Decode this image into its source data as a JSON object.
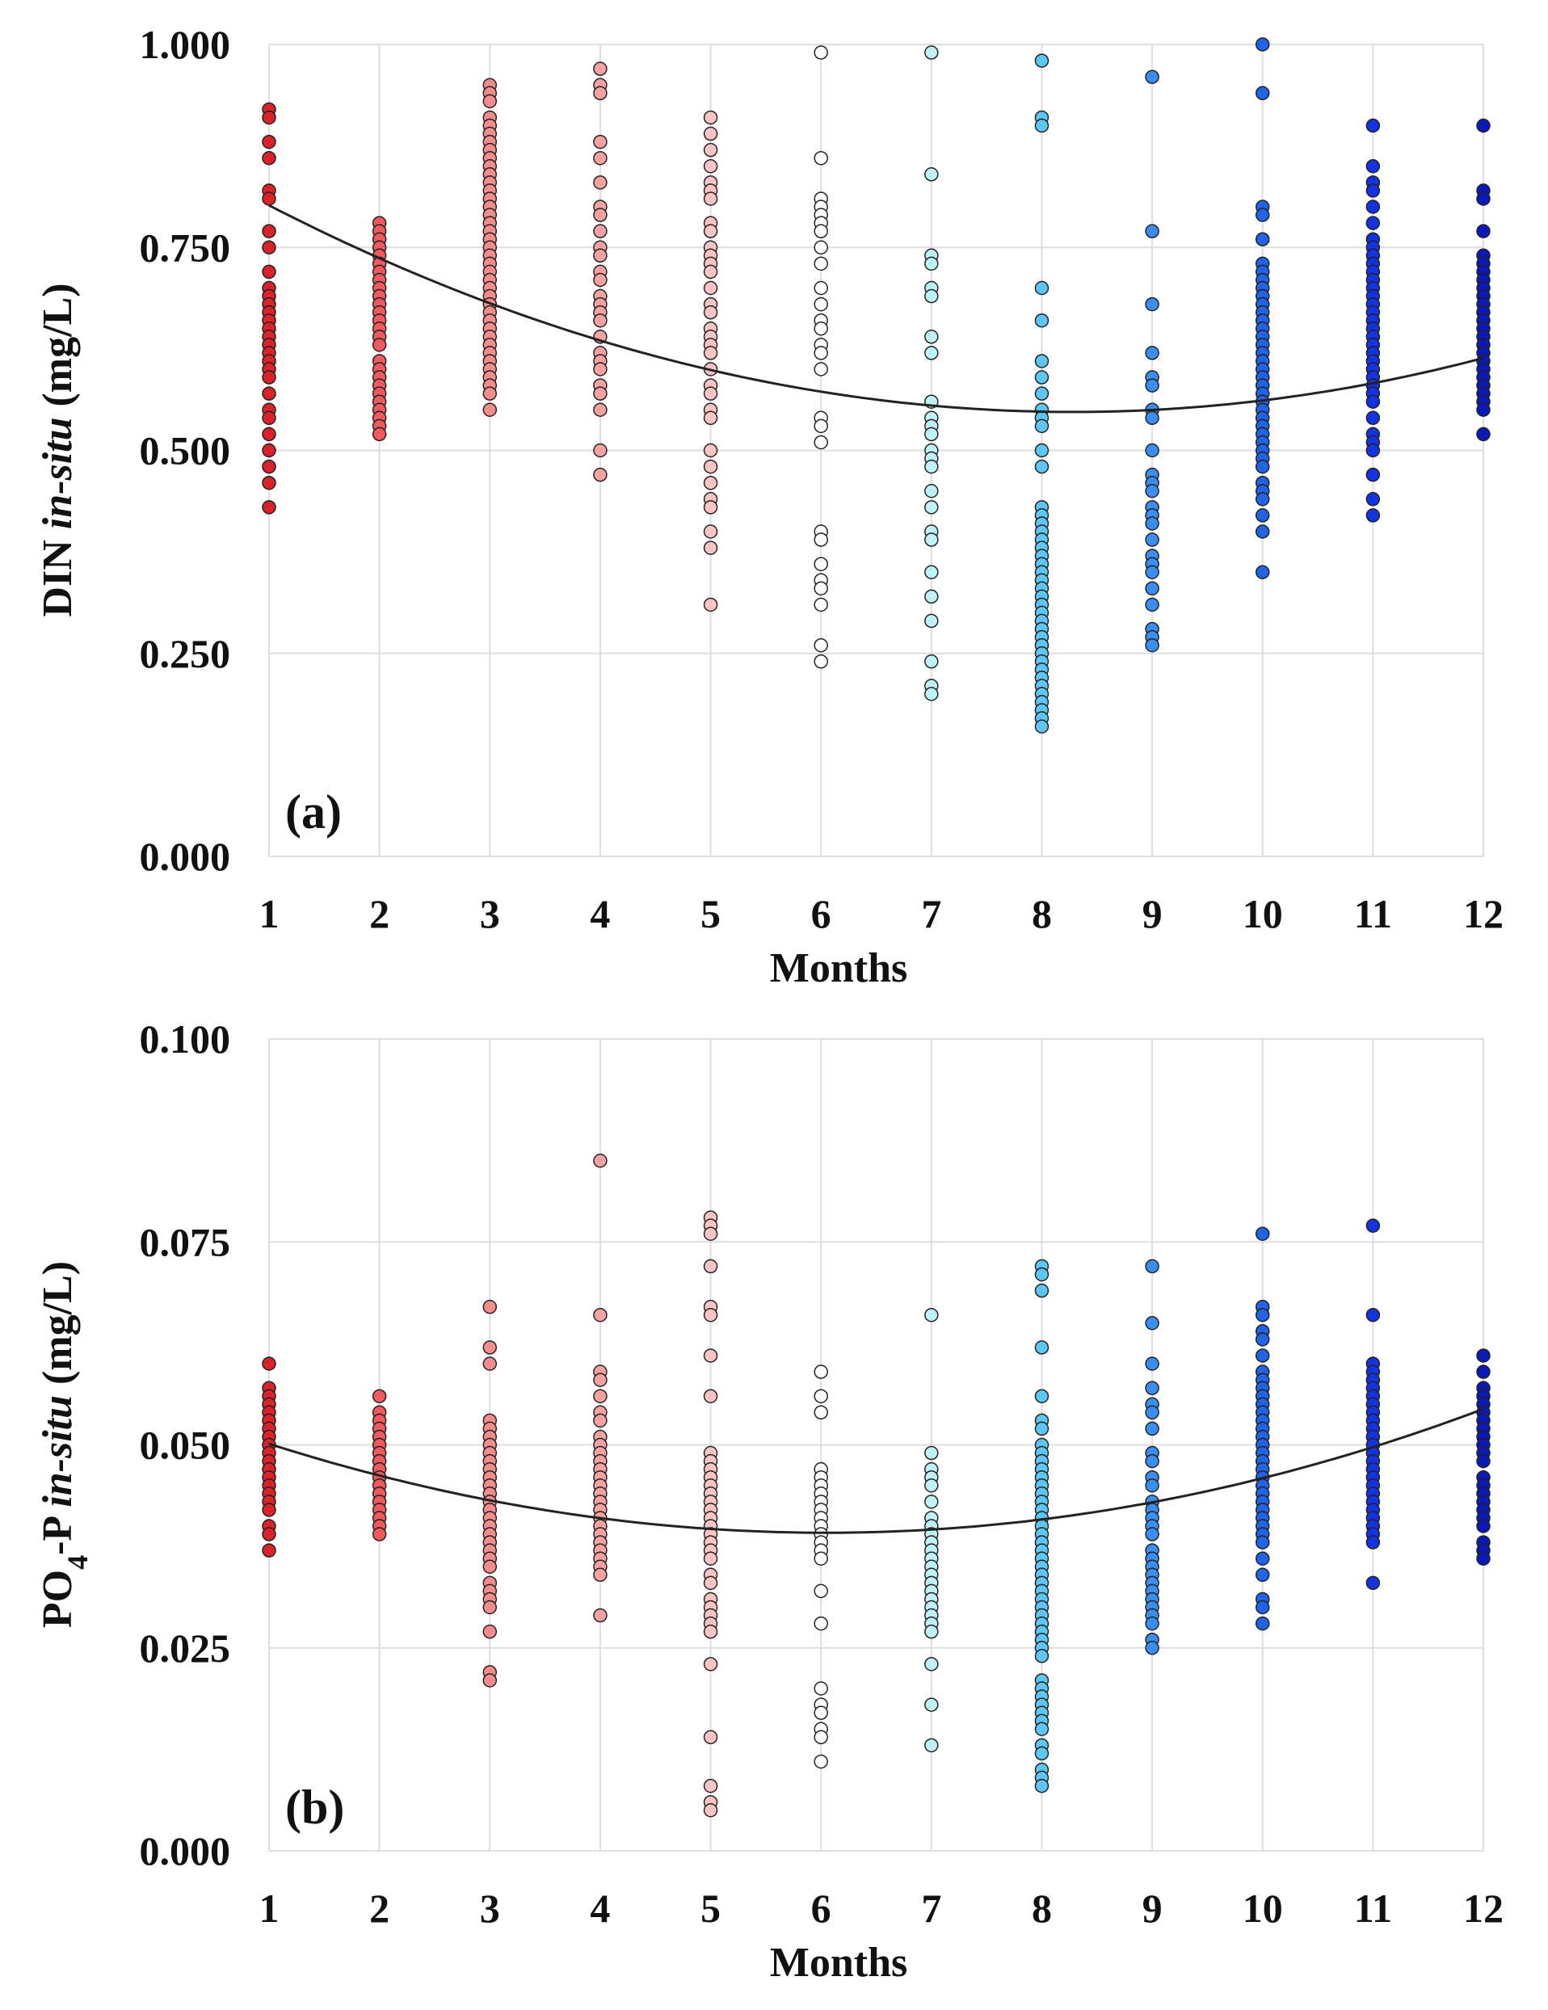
{
  "chart_data": [
    {
      "type": "scatter",
      "panel_label": "(a)",
      "xlabel": "Months",
      "ylabel_parts": [
        "DIN ",
        "in-situ",
        " (mg/L)"
      ],
      "xlim": [
        1,
        12
      ],
      "ylim": [
        0,
        1
      ],
      "yticks": [
        0,
        0.25,
        0.5,
        0.75,
        1.0
      ],
      "ytick_labels": [
        "0.000",
        "0.250",
        "0.500",
        "0.750",
        "1.000"
      ],
      "xticks": [
        1,
        2,
        3,
        4,
        5,
        6,
        7,
        8,
        9,
        10,
        11,
        12
      ],
      "xtick_labels": [
        "1",
        "2",
        "3",
        "4",
        "5",
        "6",
        "7",
        "8",
        "9",
        "10",
        "11",
        "12"
      ],
      "grid": true,
      "trend": {
        "type": "quadratic",
        "coefficients": [
          0.8765,
          -0.0795,
          0.0048
        ]
      },
      "series": [
        {
          "month": 1,
          "color": "#d8232a",
          "values": [
            0.92,
            0.91,
            0.88,
            0.86,
            0.82,
            0.81,
            0.77,
            0.75,
            0.72,
            0.7,
            0.69,
            0.68,
            0.67,
            0.66,
            0.65,
            0.64,
            0.63,
            0.62,
            0.61,
            0.6,
            0.59,
            0.57,
            0.55,
            0.54,
            0.52,
            0.5,
            0.48,
            0.46,
            0.43
          ]
        },
        {
          "month": 2,
          "color": "#f05a5f",
          "values": [
            0.78,
            0.77,
            0.76,
            0.75,
            0.74,
            0.73,
            0.72,
            0.71,
            0.7,
            0.69,
            0.68,
            0.67,
            0.66,
            0.65,
            0.64,
            0.63,
            0.61,
            0.6,
            0.59,
            0.58,
            0.57,
            0.56,
            0.55,
            0.54,
            0.53,
            0.52
          ]
        },
        {
          "month": 3,
          "color": "#f58c8c",
          "values": [
            0.95,
            0.94,
            0.93,
            0.91,
            0.9,
            0.89,
            0.88,
            0.87,
            0.86,
            0.85,
            0.84,
            0.83,
            0.82,
            0.81,
            0.8,
            0.79,
            0.78,
            0.77,
            0.76,
            0.75,
            0.74,
            0.73,
            0.72,
            0.71,
            0.7,
            0.69,
            0.68,
            0.67,
            0.66,
            0.65,
            0.64,
            0.63,
            0.62,
            0.61,
            0.6,
            0.59,
            0.58,
            0.57,
            0.55
          ]
        },
        {
          "month": 4,
          "color": "#f7a2a2",
          "values": [
            0.97,
            0.95,
            0.94,
            0.88,
            0.86,
            0.83,
            0.8,
            0.79,
            0.77,
            0.75,
            0.74,
            0.72,
            0.71,
            0.69,
            0.68,
            0.67,
            0.66,
            0.64,
            0.62,
            0.61,
            0.6,
            0.58,
            0.57,
            0.55,
            0.5,
            0.47
          ]
        },
        {
          "month": 5,
          "color": "#fac4c4",
          "values": [
            0.91,
            0.89,
            0.87,
            0.85,
            0.83,
            0.82,
            0.81,
            0.78,
            0.77,
            0.75,
            0.74,
            0.73,
            0.72,
            0.7,
            0.68,
            0.67,
            0.65,
            0.64,
            0.63,
            0.62,
            0.6,
            0.58,
            0.57,
            0.55,
            0.54,
            0.5,
            0.48,
            0.46,
            0.44,
            0.43,
            0.4,
            0.38,
            0.31
          ]
        },
        {
          "month": 6,
          "color": "#ffffff",
          "values": [
            0.99,
            0.86,
            0.81,
            0.8,
            0.79,
            0.78,
            0.77,
            0.75,
            0.73,
            0.7,
            0.68,
            0.66,
            0.65,
            0.63,
            0.62,
            0.6,
            0.54,
            0.53,
            0.51,
            0.4,
            0.39,
            0.36,
            0.34,
            0.33,
            0.31,
            0.26,
            0.24
          ]
        },
        {
          "month": 7,
          "color": "#bff2f6",
          "values": [
            0.99,
            0.84,
            0.74,
            0.73,
            0.7,
            0.69,
            0.64,
            0.62,
            0.56,
            0.54,
            0.53,
            0.52,
            0.5,
            0.49,
            0.48,
            0.45,
            0.43,
            0.4,
            0.39,
            0.35,
            0.32,
            0.29,
            0.24,
            0.21,
            0.2
          ]
        },
        {
          "month": 8,
          "color": "#5ec6f2",
          "values": [
            0.98,
            0.91,
            0.9,
            0.7,
            0.66,
            0.61,
            0.59,
            0.57,
            0.55,
            0.54,
            0.53,
            0.5,
            0.48,
            0.43,
            0.42,
            0.41,
            0.4,
            0.39,
            0.38,
            0.37,
            0.36,
            0.35,
            0.34,
            0.33,
            0.32,
            0.31,
            0.3,
            0.29,
            0.28,
            0.27,
            0.26,
            0.25,
            0.24,
            0.23,
            0.22,
            0.21,
            0.2,
            0.19,
            0.18,
            0.17,
            0.16
          ]
        },
        {
          "month": 9,
          "color": "#3a8ef0",
          "values": [
            0.96,
            0.77,
            0.68,
            0.62,
            0.59,
            0.58,
            0.55,
            0.54,
            0.5,
            0.47,
            0.46,
            0.45,
            0.43,
            0.42,
            0.41,
            0.39,
            0.37,
            0.36,
            0.35,
            0.33,
            0.31,
            0.28,
            0.27,
            0.26
          ]
        },
        {
          "month": 10,
          "color": "#2063e6",
          "values": [
            1.0,
            0.94,
            0.8,
            0.79,
            0.76,
            0.73,
            0.72,
            0.71,
            0.7,
            0.69,
            0.68,
            0.67,
            0.66,
            0.65,
            0.64,
            0.63,
            0.62,
            0.61,
            0.6,
            0.59,
            0.58,
            0.57,
            0.56,
            0.55,
            0.54,
            0.53,
            0.52,
            0.51,
            0.5,
            0.49,
            0.48,
            0.46,
            0.45,
            0.44,
            0.42,
            0.4,
            0.35
          ]
        },
        {
          "month": 11,
          "color": "#1433e0",
          "values": [
            0.9,
            0.85,
            0.83,
            0.82,
            0.8,
            0.78,
            0.76,
            0.75,
            0.74,
            0.73,
            0.72,
            0.71,
            0.7,
            0.69,
            0.68,
            0.67,
            0.66,
            0.65,
            0.64,
            0.63,
            0.62,
            0.61,
            0.6,
            0.59,
            0.58,
            0.57,
            0.56,
            0.54,
            0.52,
            0.51,
            0.5,
            0.47,
            0.44,
            0.42
          ]
        },
        {
          "month": 12,
          "color": "#0a1ab8",
          "values": [
            0.9,
            0.82,
            0.81,
            0.77,
            0.74,
            0.73,
            0.72,
            0.71,
            0.7,
            0.69,
            0.68,
            0.67,
            0.66,
            0.65,
            0.64,
            0.63,
            0.62,
            0.61,
            0.6,
            0.59,
            0.58,
            0.57,
            0.56,
            0.55,
            0.52
          ]
        }
      ]
    },
    {
      "type": "scatter",
      "panel_label": "(b)",
      "xlabel": "Months",
      "ylabel_parts": [
        "PO",
        "4",
        "-P ",
        "in-situ",
        " (mg/L)"
      ],
      "xlim": [
        1,
        12
      ],
      "ylim": [
        0,
        0.1
      ],
      "yticks": [
        0,
        0.025,
        0.05,
        0.075,
        0.1
      ],
      "ytick_labels": [
        "0.000",
        "0.025",
        "0.050",
        "0.075",
        "0.100"
      ],
      "xticks": [
        1,
        2,
        3,
        4,
        5,
        6,
        7,
        8,
        9,
        10,
        11,
        12
      ],
      "xtick_labels": [
        "1",
        "2",
        "3",
        "4",
        "5",
        "6",
        "7",
        "8",
        "9",
        "10",
        "11",
        "12"
      ],
      "grid": true,
      "trend": {
        "type": "quadratic",
        "coefficients": [
          0.0549,
          -0.0052,
          0.00043
        ]
      },
      "series": [
        {
          "month": 1,
          "color": "#d8232a",
          "values": [
            0.06,
            0.057,
            0.056,
            0.055,
            0.054,
            0.053,
            0.052,
            0.051,
            0.05,
            0.049,
            0.048,
            0.047,
            0.046,
            0.045,
            0.044,
            0.043,
            0.042,
            0.04,
            0.039,
            0.037
          ]
        },
        {
          "month": 2,
          "color": "#f05a5f",
          "values": [
            0.056,
            0.054,
            0.053,
            0.052,
            0.051,
            0.05,
            0.049,
            0.048,
            0.047,
            0.046,
            0.045,
            0.044,
            0.043,
            0.042,
            0.041,
            0.04,
            0.039
          ]
        },
        {
          "month": 3,
          "color": "#f58c8c",
          "values": [
            0.067,
            0.062,
            0.06,
            0.053,
            0.052,
            0.051,
            0.05,
            0.049,
            0.048,
            0.047,
            0.046,
            0.045,
            0.044,
            0.043,
            0.042,
            0.041,
            0.04,
            0.039,
            0.038,
            0.037,
            0.036,
            0.035,
            0.033,
            0.032,
            0.031,
            0.03,
            0.027,
            0.022,
            0.021
          ]
        },
        {
          "month": 4,
          "color": "#f7a2a2",
          "values": [
            0.085,
            0.066,
            0.059,
            0.058,
            0.056,
            0.054,
            0.053,
            0.051,
            0.05,
            0.049,
            0.048,
            0.047,
            0.046,
            0.045,
            0.044,
            0.043,
            0.042,
            0.041,
            0.04,
            0.039,
            0.038,
            0.037,
            0.036,
            0.035,
            0.034,
            0.029
          ]
        },
        {
          "month": 5,
          "color": "#fac4c4",
          "values": [
            0.078,
            0.077,
            0.076,
            0.072,
            0.067,
            0.066,
            0.061,
            0.056,
            0.049,
            0.048,
            0.047,
            0.046,
            0.045,
            0.044,
            0.043,
            0.042,
            0.041,
            0.04,
            0.039,
            0.038,
            0.037,
            0.036,
            0.034,
            0.033,
            0.031,
            0.03,
            0.029,
            0.028,
            0.027,
            0.023,
            0.014,
            0.008,
            0.006,
            0.005
          ]
        },
        {
          "month": 6,
          "color": "#ffffff",
          "values": [
            0.059,
            0.056,
            0.054,
            0.047,
            0.046,
            0.045,
            0.044,
            0.043,
            0.042,
            0.041,
            0.04,
            0.039,
            0.038,
            0.037,
            0.036,
            0.032,
            0.028,
            0.02,
            0.018,
            0.017,
            0.015,
            0.014,
            0.011
          ]
        },
        {
          "month": 7,
          "color": "#bff2f6",
          "values": [
            0.066,
            0.049,
            0.047,
            0.046,
            0.045,
            0.043,
            0.041,
            0.04,
            0.039,
            0.038,
            0.037,
            0.036,
            0.035,
            0.034,
            0.033,
            0.032,
            0.031,
            0.03,
            0.029,
            0.028,
            0.027,
            0.023,
            0.018,
            0.013
          ]
        },
        {
          "month": 8,
          "color": "#5ec6f2",
          "values": [
            0.072,
            0.071,
            0.069,
            0.062,
            0.056,
            0.053,
            0.052,
            0.05,
            0.049,
            0.048,
            0.047,
            0.046,
            0.045,
            0.044,
            0.043,
            0.042,
            0.041,
            0.04,
            0.039,
            0.038,
            0.037,
            0.036,
            0.035,
            0.034,
            0.033,
            0.032,
            0.031,
            0.03,
            0.029,
            0.028,
            0.027,
            0.026,
            0.025,
            0.024,
            0.021,
            0.02,
            0.019,
            0.018,
            0.017,
            0.016,
            0.015,
            0.013,
            0.012,
            0.01,
            0.009,
            0.008
          ]
        },
        {
          "month": 9,
          "color": "#3a8ef0",
          "values": [
            0.072,
            0.065,
            0.06,
            0.057,
            0.055,
            0.054,
            0.052,
            0.049,
            0.048,
            0.046,
            0.045,
            0.043,
            0.042,
            0.041,
            0.04,
            0.039,
            0.037,
            0.036,
            0.035,
            0.034,
            0.033,
            0.032,
            0.031,
            0.03,
            0.029,
            0.028,
            0.026,
            0.025
          ]
        },
        {
          "month": 10,
          "color": "#2063e6",
          "values": [
            0.076,
            0.067,
            0.066,
            0.064,
            0.063,
            0.061,
            0.059,
            0.058,
            0.057,
            0.056,
            0.055,
            0.054,
            0.053,
            0.052,
            0.051,
            0.05,
            0.049,
            0.048,
            0.047,
            0.046,
            0.045,
            0.044,
            0.043,
            0.042,
            0.041,
            0.04,
            0.039,
            0.038,
            0.036,
            0.034,
            0.031,
            0.03,
            0.028
          ]
        },
        {
          "month": 11,
          "color": "#1433e0",
          "values": [
            0.077,
            0.066,
            0.06,
            0.059,
            0.058,
            0.057,
            0.056,
            0.055,
            0.054,
            0.053,
            0.052,
            0.051,
            0.05,
            0.049,
            0.048,
            0.047,
            0.046,
            0.045,
            0.044,
            0.043,
            0.042,
            0.041,
            0.04,
            0.039,
            0.038,
            0.033
          ]
        },
        {
          "month": 12,
          "color": "#0a1ab8",
          "values": [
            0.061,
            0.059,
            0.057,
            0.056,
            0.055,
            0.054,
            0.053,
            0.052,
            0.051,
            0.05,
            0.049,
            0.048,
            0.046,
            0.045,
            0.044,
            0.043,
            0.042,
            0.041,
            0.04,
            0.038,
            0.037,
            0.036
          ]
        }
      ]
    }
  ]
}
